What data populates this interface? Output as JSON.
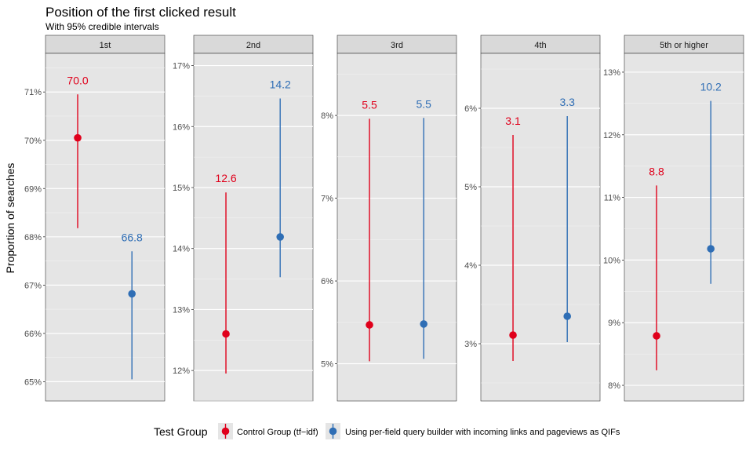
{
  "chart_data": {
    "type": "scatter",
    "title": "Position of the first clicked result",
    "subtitle": "With 95% credible intervals",
    "ylabel": "Proportion of searches",
    "legend": {
      "title": "Test Group",
      "placement": "bottom",
      "entries": [
        {
          "name": "Control Group (tf−idf)",
          "color": "#e0001b"
        },
        {
          "name": "Using per-field query builder with incoming links and pageviews as QIFs",
          "color": "#2f6eb5"
        }
      ]
    },
    "panels": [
      {
        "facet": "1st",
        "ylim": [
          64.6,
          71.8
        ],
        "ticks": [
          65,
          66,
          67,
          68,
          69,
          70,
          71
        ],
        "tick_labels": [
          "65%",
          "66%",
          "67%",
          "68%",
          "69%",
          "70%",
          "71%"
        ],
        "points": [
          {
            "group": 0,
            "value": 70.05,
            "lower": 68.18,
            "upper": 70.95,
            "label": "70.0"
          },
          {
            "group": 1,
            "value": 66.82,
            "lower": 65.05,
            "upper": 67.7,
            "label": "66.8"
          }
        ]
      },
      {
        "facet": "2nd",
        "ylim": [
          11.5,
          17.2
        ],
        "ticks": [
          12,
          13,
          14,
          15,
          16,
          17
        ],
        "tick_labels": [
          "12%",
          "13%",
          "14%",
          "15%",
          "16%",
          "17%"
        ],
        "points": [
          {
            "group": 0,
            "value": 12.6,
            "lower": 11.95,
            "upper": 14.92,
            "label": "12.6"
          },
          {
            "group": 1,
            "value": 14.19,
            "lower": 13.53,
            "upper": 16.46,
            "label": "14.2"
          }
        ]
      },
      {
        "facet": "3rd",
        "ylim": [
          4.55,
          8.75
        ],
        "ticks": [
          5,
          6,
          7,
          8
        ],
        "tick_labels": [
          "5%",
          "6%",
          "7%",
          "8%"
        ],
        "points": [
          {
            "group": 0,
            "value": 5.47,
            "lower": 5.03,
            "upper": 7.96,
            "label": "5.5"
          },
          {
            "group": 1,
            "value": 5.48,
            "lower": 5.06,
            "upper": 7.97,
            "label": "5.5"
          }
        ]
      },
      {
        "facet": "4th",
        "ylim": [
          2.27,
          6.7
        ],
        "ticks": [
          3,
          4,
          5,
          6
        ],
        "tick_labels": [
          "3%",
          "4%",
          "5%",
          "6%"
        ],
        "points": [
          {
            "group": 0,
            "value": 3.11,
            "lower": 2.78,
            "upper": 5.66,
            "label": "3.1"
          },
          {
            "group": 1,
            "value": 3.35,
            "lower": 3.02,
            "upper": 5.9,
            "label": "3.3"
          }
        ]
      },
      {
        "facet": "5th or higher",
        "ylim": [
          7.75,
          13.3
        ],
        "ticks": [
          8,
          9,
          10,
          11,
          12,
          13
        ],
        "tick_labels": [
          "8%",
          "9%",
          "10%",
          "11%",
          "12%",
          "13%"
        ],
        "points": [
          {
            "group": 0,
            "value": 8.79,
            "lower": 8.24,
            "upper": 11.19,
            "label": "8.8"
          },
          {
            "group": 1,
            "value": 10.18,
            "lower": 9.62,
            "upper": 12.54,
            "label": "10.2"
          }
        ]
      }
    ]
  }
}
